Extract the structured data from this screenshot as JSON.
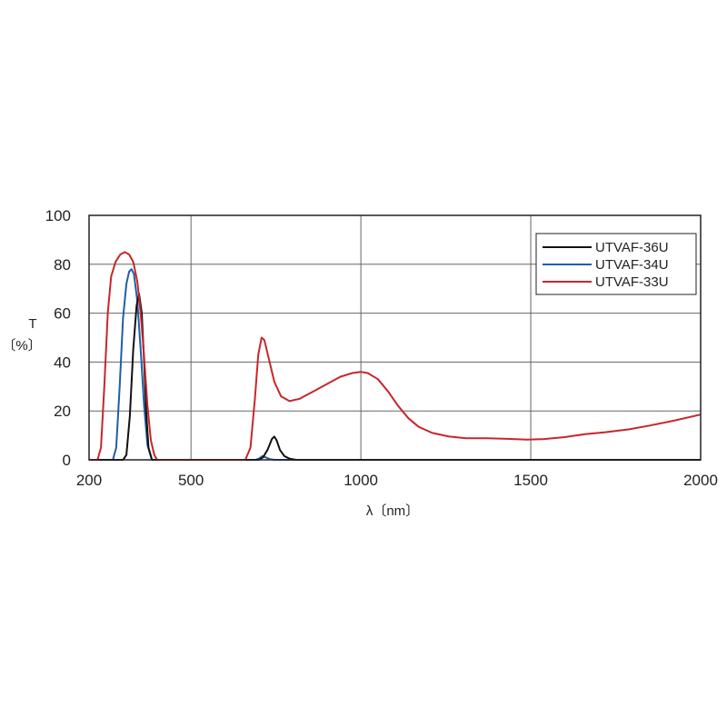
{
  "chart_data": {
    "type": "line",
    "title": "",
    "xlabel": "λ〔nm〕",
    "ylabel_line1": "T",
    "ylabel_line2": "〔%〕",
    "xlim": [
      200,
      2000
    ],
    "ylim": [
      0,
      100
    ],
    "x_ticks": [
      200,
      500,
      1000,
      1500,
      2000
    ],
    "x_tick_labels": [
      "200",
      "500",
      "1000",
      "1500",
      "2000"
    ],
    "y_ticks": [
      0,
      20,
      40,
      60,
      80,
      100
    ],
    "y_tick_labels": [
      "0",
      "20",
      "40",
      "60",
      "80",
      "100"
    ],
    "x_gridlines": [
      500,
      1000,
      1500
    ],
    "y_gridlines": [
      20,
      40,
      60,
      80
    ],
    "grid": true,
    "legend_position": "top-right",
    "series": [
      {
        "name": "UTVAF-36U",
        "color": "#111111",
        "points": [
          [
            200,
            0
          ],
          [
            300,
            0
          ],
          [
            310,
            2
          ],
          [
            320,
            18
          ],
          [
            330,
            45
          ],
          [
            340,
            63
          ],
          [
            347,
            68
          ],
          [
            355,
            60
          ],
          [
            362,
            40
          ],
          [
            368,
            20
          ],
          [
            375,
            5
          ],
          [
            385,
            0
          ],
          [
            700,
            0
          ],
          [
            712,
            1
          ],
          [
            725,
            4
          ],
          [
            738,
            8.5
          ],
          [
            745,
            9.5
          ],
          [
            752,
            8
          ],
          [
            762,
            4
          ],
          [
            775,
            1.5
          ],
          [
            790,
            0.5
          ],
          [
            810,
            0
          ],
          [
            2000,
            0
          ]
        ]
      },
      {
        "name": "UTVAF-34U",
        "color": "#1f5fa8",
        "points": [
          [
            200,
            0
          ],
          [
            270,
            0
          ],
          [
            280,
            5
          ],
          [
            290,
            30
          ],
          [
            300,
            58
          ],
          [
            310,
            72
          ],
          [
            318,
            77
          ],
          [
            325,
            78
          ],
          [
            332,
            76
          ],
          [
            342,
            65
          ],
          [
            352,
            45
          ],
          [
            362,
            22
          ],
          [
            372,
            6
          ],
          [
            385,
            0
          ],
          [
            690,
            0
          ],
          [
            700,
            0.5
          ],
          [
            710,
            1.5
          ],
          [
            720,
            1
          ],
          [
            732,
            0.3
          ],
          [
            745,
            0
          ],
          [
            2000,
            0
          ]
        ]
      },
      {
        "name": "UTVAF-33U",
        "color": "#c8262b",
        "points": [
          [
            200,
            0
          ],
          [
            225,
            0
          ],
          [
            235,
            5
          ],
          [
            245,
            30
          ],
          [
            255,
            60
          ],
          [
            265,
            75
          ],
          [
            278,
            81
          ],
          [
            292,
            84
          ],
          [
            305,
            85
          ],
          [
            318,
            84
          ],
          [
            330,
            81
          ],
          [
            342,
            73
          ],
          [
            352,
            60
          ],
          [
            362,
            42
          ],
          [
            372,
            22
          ],
          [
            382,
            8
          ],
          [
            392,
            2
          ],
          [
            400,
            0
          ],
          [
            660,
            0
          ],
          [
            675,
            5
          ],
          [
            688,
            25
          ],
          [
            698,
            43
          ],
          [
            708,
            50
          ],
          [
            716,
            49
          ],
          [
            728,
            42
          ],
          [
            745,
            32
          ],
          [
            765,
            26
          ],
          [
            790,
            24
          ],
          [
            820,
            25
          ],
          [
            860,
            28
          ],
          [
            900,
            31
          ],
          [
            940,
            34
          ],
          [
            975,
            35.5
          ],
          [
            1000,
            36
          ],
          [
            1020,
            35.5
          ],
          [
            1050,
            33
          ],
          [
            1080,
            28
          ],
          [
            1110,
            22
          ],
          [
            1140,
            17
          ],
          [
            1170,
            13.5
          ],
          [
            1210,
            11
          ],
          [
            1260,
            9.5
          ],
          [
            1310,
            8.8
          ],
          [
            1370,
            8.8
          ],
          [
            1430,
            8.6
          ],
          [
            1490,
            8.3
          ],
          [
            1540,
            8.5
          ],
          [
            1600,
            9.3
          ],
          [
            1660,
            10.5
          ],
          [
            1720,
            11.3
          ],
          [
            1790,
            12.5
          ],
          [
            1850,
            14
          ],
          [
            1920,
            16
          ],
          [
            2000,
            18.5
          ]
        ]
      }
    ]
  }
}
